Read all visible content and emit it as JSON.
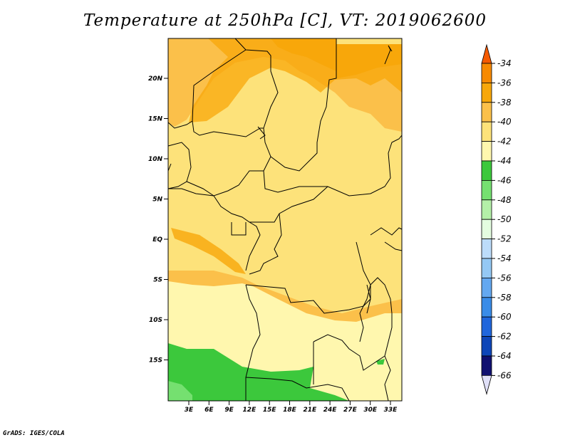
{
  "title": "Temperature at 250hPa [C], VT: 2019062600",
  "credit": "GrADS: IGES/COLA",
  "lat_ticks": [
    "20N",
    "15N",
    "10N",
    "5N",
    "EQ",
    "5S",
    "10S",
    "15S"
  ],
  "lon_ticks": [
    "3E",
    "6E",
    "9E",
    "12E",
    "15E",
    "18E",
    "21E",
    "24E",
    "27E",
    "30E",
    "33E"
  ],
  "colorbar": {
    "labels": [
      "-34",
      "-36",
      "-38",
      "-40",
      "-42",
      "-44",
      "-46",
      "-48",
      "-50",
      "-52",
      "-54",
      "-56",
      "-58",
      "-60",
      "-62",
      "-64",
      "-66"
    ],
    "colors": [
      "#f55a00",
      "#f88a00",
      "#f8a70a",
      "#fbc04a",
      "#fde27a",
      "#fff7ae",
      "#3cc83c",
      "#75e070",
      "#b4f0a8",
      "#e4fde0",
      "#bcdcfa",
      "#94c8f4",
      "#64a8f0",
      "#3a8ce8",
      "#2066dc",
      "#0e46b8",
      "#101070",
      "#e0e0f8"
    ]
  }
}
